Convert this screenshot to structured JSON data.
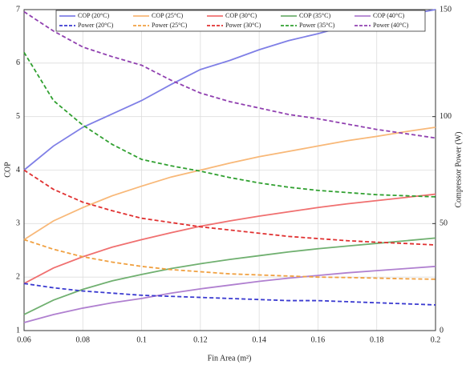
{
  "chart_data": {
    "type": "line",
    "xlabel": "Fin Area (m²)",
    "ylabel": "COP",
    "y2label": "Compressor Power (W)",
    "x": [
      0.06,
      0.07,
      0.08,
      0.09,
      0.1,
      0.11,
      0.12,
      0.13,
      0.14,
      0.15,
      0.16,
      0.17,
      0.18,
      0.19,
      0.2
    ],
    "xlim": [
      0.06,
      0.2
    ],
    "xticks": [
      0.06,
      0.08,
      0.1,
      0.12,
      0.14,
      0.16,
      0.18,
      0.2
    ],
    "ylim": [
      1,
      7
    ],
    "yticks": [
      1,
      2,
      3,
      4,
      5,
      6,
      7
    ],
    "y2lim": [
      0,
      150
    ],
    "y2ticks": [
      0,
      50,
      100,
      150
    ],
    "grid": true,
    "legend": "top",
    "series": [
      {
        "name": "COP (20°C)",
        "color": "#7f7fe6",
        "style": "solid",
        "values": [
          4.0,
          4.45,
          4.8,
          5.05,
          5.3,
          5.6,
          5.88,
          6.05,
          6.25,
          6.42,
          6.55,
          6.7,
          6.8,
          6.9,
          7.0
        ]
      },
      {
        "name": "COP (25°C)",
        "color": "#f8b878",
        "style": "solid",
        "values": [
          2.7,
          3.05,
          3.3,
          3.52,
          3.7,
          3.87,
          4.0,
          4.13,
          4.25,
          4.35,
          4.45,
          4.55,
          4.63,
          4.72,
          4.8
        ]
      },
      {
        "name": "COP (30°C)",
        "color": "#f07070",
        "style": "solid",
        "values": [
          1.88,
          2.17,
          2.38,
          2.56,
          2.7,
          2.83,
          2.95,
          3.05,
          3.14,
          3.22,
          3.3,
          3.37,
          3.43,
          3.49,
          3.55
        ]
      },
      {
        "name": "COP (35°C)",
        "color": "#70b070",
        "style": "solid",
        "values": [
          1.3,
          1.57,
          1.77,
          1.93,
          2.05,
          2.16,
          2.25,
          2.33,
          2.4,
          2.47,
          2.53,
          2.58,
          2.63,
          2.68,
          2.73
        ]
      },
      {
        "name": "COP (40°C)",
        "color": "#b080d0",
        "style": "solid",
        "values": [
          1.15,
          1.3,
          1.42,
          1.52,
          1.6,
          1.7,
          1.78,
          1.85,
          1.92,
          1.98,
          2.03,
          2.08,
          2.12,
          2.16,
          2.2
        ]
      },
      {
        "name": "Power (20°C)",
        "color": "#3a3ad0",
        "style": "dashed",
        "axis": "y2",
        "values": [
          22,
          20,
          18.5,
          17.5,
          16.5,
          16,
          15.5,
          15,
          14.5,
          14,
          14,
          13.5,
          13,
          12.5,
          12
        ]
      },
      {
        "name": "Power (25°C)",
        "color": "#f0a040",
        "style": "dashed",
        "axis": "y2",
        "values": [
          42.5,
          38,
          34.5,
          32,
          30,
          28.5,
          27.5,
          26.5,
          26,
          25.5,
          25,
          24.8,
          24.5,
          24.2,
          24
        ]
      },
      {
        "name": "Power (30°C)",
        "color": "#e03030",
        "style": "dashed",
        "axis": "y2",
        "values": [
          75,
          66,
          60,
          56,
          52.5,
          50.5,
          48.5,
          47,
          45.5,
          44,
          43,
          42,
          41.3,
          40.7,
          40
        ]
      },
      {
        "name": "Power (35°C)",
        "color": "#30a030",
        "style": "dashed",
        "axis": "y2",
        "values": [
          130,
          107.5,
          96,
          87,
          80,
          77,
          74.5,
          71.5,
          69,
          67,
          65.5,
          64.5,
          63.5,
          63,
          62.5
        ]
      },
      {
        "name": "Power (40°C)",
        "color": "#9040b0",
        "style": "dashed",
        "axis": "y2",
        "values": [
          149,
          140,
          132.5,
          128,
          124,
          117,
          111,
          107,
          104,
          101,
          99,
          96.5,
          94,
          92,
          90
        ]
      }
    ]
  }
}
